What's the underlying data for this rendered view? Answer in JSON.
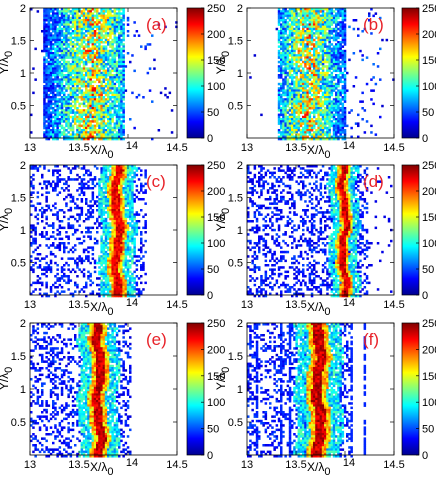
{
  "colors": {
    "label": "#e8232a",
    "axis": "#000000"
  },
  "chart_data": [
    {
      "type": "heatmap",
      "panel_label": "(a)",
      "xlabel": "X/λ",
      "xlabel_sub": "0",
      "ylabel": "Y/λ",
      "ylabel_sub": "0",
      "xlim": [
        13,
        14.5
      ],
      "ylim": [
        0,
        2
      ],
      "x_ticks": [
        "13",
        "13.5",
        "14",
        "14.5"
      ],
      "y_ticks": [
        "0.5",
        "1",
        "1.5",
        "2"
      ],
      "colorbar": {
        "range": [
          0,
          250
        ],
        "ticks": [
          "0",
          "50",
          "100",
          "150",
          "200",
          "250"
        ],
        "colormap": "jet"
      },
      "band": {
        "x_min": 13.12,
        "x_max": 13.95,
        "peak_x": 13.62,
        "peak_value": 230,
        "sparse_x_max": 14.25,
        "pattern": "diffuse"
      }
    },
    {
      "type": "heatmap",
      "panel_label": "(b)",
      "xlabel": "X/λ",
      "xlabel_sub": "0",
      "ylabel": "Y/λ",
      "ylabel_sub": "0",
      "xlim": [
        13,
        14.5
      ],
      "ylim": [
        0,
        2
      ],
      "x_ticks": [
        "13",
        "13.5",
        "14",
        "14.5"
      ],
      "y_ticks": [
        "0.5",
        "1",
        "1.5",
        "2"
      ],
      "colorbar": {
        "range": [
          0,
          250
        ],
        "ticks": [
          "0",
          "50",
          "100",
          "150",
          "200",
          "250"
        ],
        "colormap": "jet"
      },
      "band": {
        "x_min": 13.3,
        "x_max": 14.0,
        "peak_x": 13.62,
        "peak_value": 230,
        "sparse_x_max": 14.35,
        "pattern": "diffuse"
      }
    },
    {
      "type": "heatmap",
      "panel_label": "(c)",
      "xlabel": "X/λ",
      "xlabel_sub": "0",
      "ylabel": "Y/λ",
      "ylabel_sub": "0",
      "xlim": [
        13,
        14.5
      ],
      "ylim": [
        0,
        2
      ],
      "x_ticks": [
        "13",
        "13.5",
        "14",
        "14.5"
      ],
      "y_ticks": [
        "0.5",
        "1",
        "1.5",
        "2"
      ],
      "colorbar": {
        "range": [
          0,
          250
        ],
        "ticks": [
          "0",
          "50",
          "100",
          "150",
          "200",
          "250"
        ],
        "colormap": "jet"
      },
      "band": {
        "x_min": 13.72,
        "x_max": 14.08,
        "peak_x": 13.88,
        "peak_value": 240,
        "sparse_x_max": 14.12,
        "pattern": "band"
      }
    },
    {
      "type": "heatmap",
      "panel_label": "(d)",
      "xlabel": "X/λ",
      "xlabel_sub": "0",
      "ylabel": "Y/λ",
      "ylabel_sub": "0",
      "xlim": [
        13,
        14.5
      ],
      "ylim": [
        0,
        2
      ],
      "x_ticks": [
        "13",
        "13.5",
        "14",
        "14.5"
      ],
      "y_ticks": [
        "0.5",
        "1",
        "1.5",
        "2"
      ],
      "colorbar": {
        "range": [
          0,
          250
        ],
        "ticks": [
          "0",
          "50",
          "100",
          "150",
          "200",
          "250"
        ],
        "colormap": "jet"
      },
      "band": {
        "x_min": 13.86,
        "x_max": 14.15,
        "peak_x": 13.98,
        "peak_value": 245,
        "sparse_x_max": 14.18,
        "pattern": "band-with-dots"
      }
    },
    {
      "type": "heatmap",
      "panel_label": "(e)",
      "xlabel": "X/λ",
      "xlabel_sub": "0",
      "ylabel": "Y/λ",
      "ylabel_sub": "0",
      "xlim": [
        13,
        14.5
      ],
      "ylim": [
        0,
        2
      ],
      "x_ticks": [
        "13",
        "13.5",
        "14",
        "14.5"
      ],
      "y_ticks": [
        "0.5",
        "1",
        "1.5",
        "2"
      ],
      "colorbar": {
        "range": [
          0,
          250
        ],
        "ticks": [
          "0",
          "50",
          "100",
          "150",
          "200",
          "250"
        ],
        "colormap": "jet"
      },
      "band": {
        "x_min": 13.5,
        "x_max": 13.9,
        "peak_x": 13.69,
        "peak_value": 250,
        "sparse_x_max": 13.98,
        "pattern": "band"
      }
    },
    {
      "type": "heatmap",
      "panel_label": "(f)",
      "xlabel": "X/λ",
      "xlabel_sub": "0",
      "ylabel": "Y/λ",
      "ylabel_sub": "0",
      "xlim": [
        13,
        14.5
      ],
      "ylim": [
        0,
        2
      ],
      "x_ticks": [
        "13",
        "13.5",
        "14",
        "14.5"
      ],
      "y_ticks": [
        "0.5",
        "1",
        "1.5",
        "2"
      ],
      "colorbar": {
        "range": [
          0,
          250
        ],
        "ticks": [
          "0",
          "50",
          "100",
          "150",
          "200",
          "250"
        ],
        "colormap": "jet"
      },
      "band": {
        "x_min": 13.48,
        "x_max": 13.95,
        "peak_x": 13.72,
        "peak_value": 250,
        "sparse_x_max": 14.0,
        "pattern": "band-with-stripes"
      }
    }
  ]
}
